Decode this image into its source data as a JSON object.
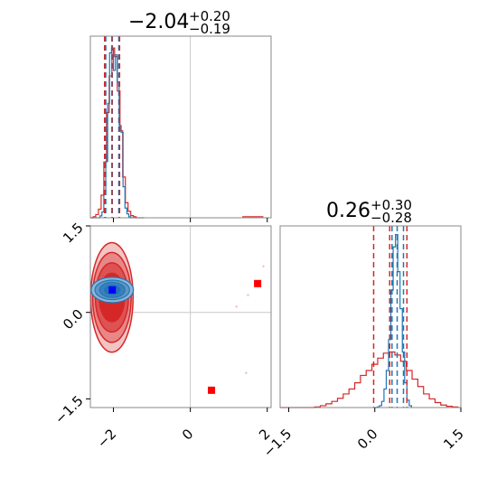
{
  "chart_data": {
    "type": "corner",
    "colors": {
      "series_a": "#d62728",
      "series_b": "#1f77b4",
      "marker_truth": "#0000ff",
      "marker_points": "#ff0000",
      "grid": "#c8c8c8"
    },
    "parameters": [
      {
        "title_main": "−2.04",
        "title_sup": "+0.20",
        "title_sub": "−0.19",
        "xlim": [
          -2.6,
          2.1
        ],
        "ticks": [
          {
            "v": -2,
            "label": "−2"
          },
          {
            "v": 0,
            "label": "0"
          },
          {
            "v": 2,
            "label": "2"
          }
        ],
        "truth": 0,
        "quantiles_series_a": [
          -2.23,
          -2.04,
          -1.84
        ],
        "quantiles_series_b": [
          -2.2,
          -2.03,
          -1.86
        ]
      },
      {
        "title_main": "0.26",
        "title_sup": "+0.30",
        "title_sub": "−0.28",
        "xlim": [
          -1.65,
          1.5
        ],
        "ticks": [
          {
            "v": -1.5,
            "label": "−1.5"
          },
          {
            "v": 0,
            "label": "0.0"
          },
          {
            "v": 1.5,
            "label": "1.5"
          }
        ],
        "truth": 0,
        "quantiles_series_a": [
          -0.02,
          0.26,
          0.56
        ],
        "quantiles_series_b": [
          0.3,
          0.39,
          0.5
        ]
      }
    ],
    "hist_a": {
      "series": "series_a",
      "bins": [
        -2.6,
        -2.53,
        -2.46,
        -2.39,
        -2.32,
        -2.25,
        -2.18,
        -2.11,
        -2.04,
        -1.97,
        -1.9,
        -1.83,
        -1.76,
        -1.69,
        -1.62,
        -1.55,
        -1.48,
        -1.41,
        -1.34,
        -1.27,
        -1.2
      ],
      "counts": [
        0,
        1,
        3,
        8,
        21,
        52,
        98,
        132,
        158,
        150,
        118,
        81,
        38,
        14,
        6,
        2,
        1,
        0,
        0,
        0
      ],
      "tail": [
        {
          "x": 1.35,
          "x2": 1.9,
          "count": 1
        }
      ]
    },
    "hist_b": {
      "series": "series_b",
      "bins": [
        -2.6,
        -2.55,
        -2.5,
        -2.45,
        -2.4,
        -2.35,
        -2.3,
        -2.25,
        -2.2,
        -2.15,
        -2.1,
        -2.05,
        -2.0,
        -1.95,
        -1.9,
        -1.85,
        -1.8,
        -1.75,
        -1.7,
        -1.65,
        -1.6,
        -1.55,
        -1.5,
        -1.45,
        -1.4
      ],
      "counts": [
        0,
        0,
        0,
        0,
        0,
        2,
        6,
        28,
        58,
        118,
        170,
        175,
        152,
        168,
        140,
        95,
        88,
        32,
        10,
        4,
        1,
        0,
        0,
        0
      ]
    },
    "hist_c": {
      "series": "series_a",
      "bins": [
        -1.65,
        -1.55,
        -1.45,
        -1.35,
        -1.25,
        -1.15,
        -1.05,
        -0.95,
        -0.85,
        -0.75,
        -0.65,
        -0.55,
        -0.45,
        -0.35,
        -0.25,
        -0.15,
        -0.05,
        0.05,
        0.15,
        0.25,
        0.35,
        0.45,
        0.55,
        0.65,
        0.75,
        0.85,
        0.95,
        1.05,
        1.15,
        1.25,
        1.35,
        1.45
      ],
      "counts": [
        0,
        0,
        0,
        0,
        0,
        0,
        1,
        3,
        6,
        10,
        15,
        22,
        30,
        40,
        52,
        60,
        70,
        80,
        88,
        90,
        85,
        75,
        60,
        46,
        34,
        22,
        14,
        8,
        4,
        2,
        1
      ]
    },
    "hist_d": {
      "series": "series_b",
      "bins": [
        0.0,
        0.04,
        0.08,
        0.12,
        0.16,
        0.2,
        0.24,
        0.28,
        0.32,
        0.36,
        0.4,
        0.44,
        0.48,
        0.52,
        0.56,
        0.6,
        0.64
      ],
      "counts": [
        0,
        1,
        3,
        10,
        30,
        60,
        110,
        190,
        260,
        280,
        220,
        160,
        90,
        40,
        12,
        3
      ]
    },
    "scatter_a": [
      [
        -2.35,
        0.55
      ],
      [
        -2.3,
        0.8
      ],
      [
        -2.25,
        0.2
      ],
      [
        -2.4,
        0.05
      ],
      [
        -2.45,
        0.45
      ],
      [
        -2.15,
        -0.3
      ],
      [
        -2.05,
        0.95
      ],
      [
        -1.95,
        0.75
      ],
      [
        -1.8,
        0.35
      ],
      [
        -1.75,
        0.1
      ],
      [
        -2.5,
        0.3
      ],
      [
        -2.2,
        -0.4
      ],
      [
        -1.9,
        -0.2
      ],
      [
        -2.1,
        1.1
      ],
      [
        -1.85,
        0.6
      ],
      [
        1.2,
        0.1
      ],
      [
        1.45,
        -1.05
      ],
      [
        1.5,
        0.3
      ],
      [
        1.9,
        0.8
      ]
    ],
    "contour_a": [
      {
        "rx": 0.55,
        "ry": 0.95,
        "fill": "#f2c4c4",
        "opacity": 1
      },
      {
        "rx": 0.5,
        "ry": 0.78,
        "fill": "#e88787",
        "opacity": 1
      },
      {
        "rx": 0.43,
        "ry": 0.6,
        "fill": "#dd5252",
        "opacity": 1
      },
      {
        "rx": 0.33,
        "ry": 0.42,
        "fill": "#d62728",
        "opacity": 1
      }
    ],
    "contour_center_a": [
      -2.04,
      0.26
    ],
    "contour_b": [
      {
        "rx": 0.55,
        "ry": 0.22
      },
      {
        "rx": 0.45,
        "ry": 0.17
      },
      {
        "rx": 0.33,
        "ry": 0.13
      },
      {
        "rx": 0.2,
        "ry": 0.08
      }
    ],
    "contour_center_b": [
      -2.03,
      0.39
    ],
    "truth_marker": [
      -2.03,
      0.39
    ],
    "point_markers": [
      [
        0.55,
        -1.35
      ],
      [
        1.75,
        0.5
      ]
    ]
  }
}
